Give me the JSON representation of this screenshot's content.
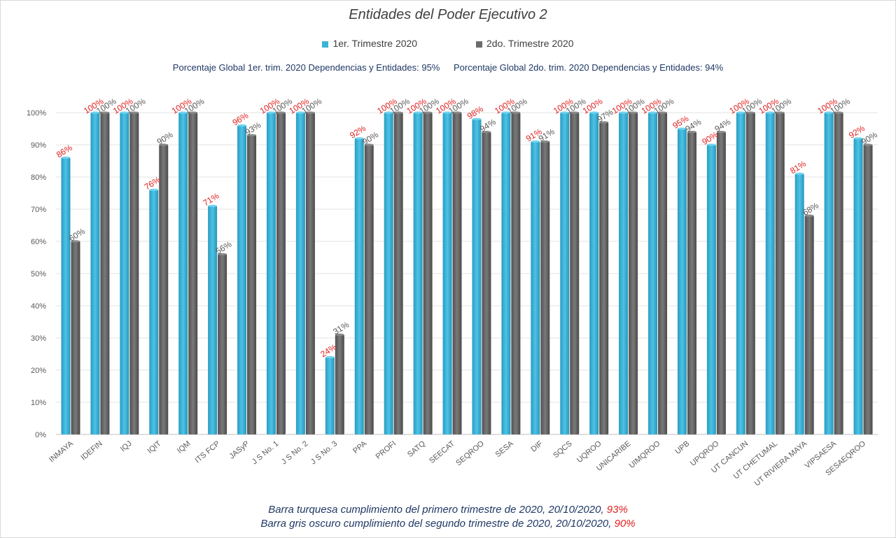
{
  "chart_data": {
    "type": "bar",
    "title": "Entidades del Poder Ejecutivo 2",
    "categories": [
      "INMAYA",
      "IDEFIN",
      "IQJ",
      "IQIT",
      "IQM",
      "ITS FCP",
      "JASyP",
      "J S No. 1",
      "J S No. 2",
      "J S No. 3",
      "PPA",
      "PROFI",
      "SATQ",
      "SEECAT",
      "SEQROO",
      "SESA",
      "DIF",
      "SQCS",
      "UQROO",
      "UNICARIBE",
      "UIMQROO",
      "UPB",
      "UPQROO",
      "UT CANCUN",
      "UT CHETUMAL",
      "UT RIVIERA MAYA",
      "VIPSAESA",
      "SESAEQROO"
    ],
    "series": [
      {
        "name": "1er. Trimestre 2020",
        "color": "#3cb4d8",
        "values": [
          86,
          100,
          100,
          76,
          100,
          71,
          96,
          100,
          100,
          24,
          92,
          100,
          100,
          100,
          98,
          100,
          91,
          100,
          100,
          100,
          100,
          95,
          90,
          100,
          100,
          81,
          100,
          92
        ]
      },
      {
        "name": "2do. Trimestre 2020",
        "color": "#6b6b6b",
        "values": [
          60,
          100,
          100,
          90,
          100,
          56,
          93,
          100,
          100,
          31,
          90,
          100,
          100,
          100,
          94,
          100,
          91,
          100,
          97,
          100,
          100,
          94,
          94,
          100,
          100,
          68,
          100,
          90
        ]
      }
    ],
    "data_labels": {
      "s1": [
        "86%",
        "100%",
        "100%",
        "76%",
        "100%",
        "71%",
        "96%",
        "100%",
        "100%",
        "24%",
        "92%",
        "100%",
        "100%",
        "100%",
        "98%",
        "100%",
        "91%",
        "100%",
        "100%",
        "100%",
        "100%",
        "95%",
        "90%",
        "100%",
        "100%",
        "81%",
        "100%",
        "92%"
      ],
      "s2": [
        "60%",
        "100%",
        "100%",
        "90%",
        "100%",
        "56%",
        "93%",
        "100%",
        "100%",
        "31%",
        "90%",
        "100%",
        "100%",
        "100%",
        "94%",
        "100%",
        "91%",
        "100%",
        "97%",
        "100%",
        "100%",
        "94%",
        "94%",
        "100%",
        "100%",
        "68%",
        "100%",
        "90%"
      ]
    },
    "yticks": [
      "0%",
      "10%",
      "20%",
      "30%",
      "40%",
      "50%",
      "60%",
      "70%",
      "80%",
      "90%",
      "100%"
    ],
    "ylim": [
      0,
      100
    ],
    "grid": true,
    "legend": "top-center"
  },
  "global_text": {
    "q1": "Porcentaje Global 1er. trim. 2020 Dependencias y Entidades: 95%",
    "q2": "Porcentaje Global 2do. trim. 2020 Dependencias y Entidades: 94%"
  },
  "footer": {
    "line1_text": "Barra turquesa cumplimiento del primero trimestre de 2020, 20/10/2020,",
    "line1_pct": "93%",
    "line2_text": "Barra gris oscuro cumplimiento del segundo trimestre de 2020, 20/10/2020,",
    "line2_pct": "90%"
  }
}
